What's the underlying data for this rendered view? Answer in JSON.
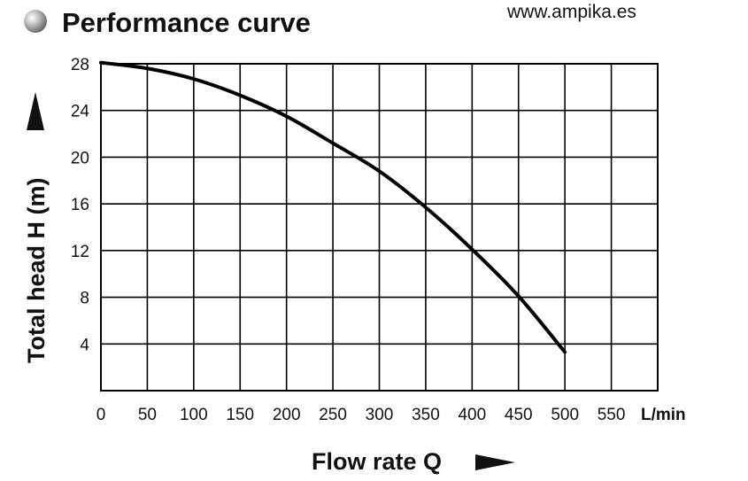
{
  "header": {
    "title": "Performance curve",
    "url": "www.ampika.es"
  },
  "colors": {
    "curve": "#000000",
    "grid": "#000000",
    "bullet": "#9a9a9a"
  },
  "icons": {
    "bullet": "gray-sphere-icon",
    "y_arrow": "arrow-up-icon",
    "x_arrow": "arrow-right-icon"
  },
  "chart_data": {
    "type": "line",
    "ylabel": "Total head H (m)",
    "xlabel": "Flow rate Q",
    "x_unit": "L/min",
    "xlim": [
      0,
      600
    ],
    "ylim": [
      0,
      28
    ],
    "grid": true,
    "x_ticks": [
      "0",
      "50",
      "100",
      "150",
      "200",
      "250",
      "300",
      "350",
      "400",
      "450",
      "500",
      "550"
    ],
    "y_ticks": [
      "4",
      "8",
      "12",
      "16",
      "20",
      "24",
      "28"
    ],
    "x_tick_values": [
      0,
      50,
      100,
      150,
      200,
      250,
      300,
      350,
      400,
      450,
      500,
      550
    ],
    "y_tick_values": [
      4,
      8,
      12,
      16,
      20,
      24,
      28
    ],
    "series": [
      {
        "x": [
          0,
          50,
          100,
          150,
          200,
          250,
          300,
          350,
          400,
          450,
          500
        ],
        "y": [
          28.1,
          27.6,
          26.7,
          25.3,
          23.5,
          21.2,
          18.8,
          15.7,
          12.1,
          8.1,
          3.3
        ]
      }
    ]
  }
}
